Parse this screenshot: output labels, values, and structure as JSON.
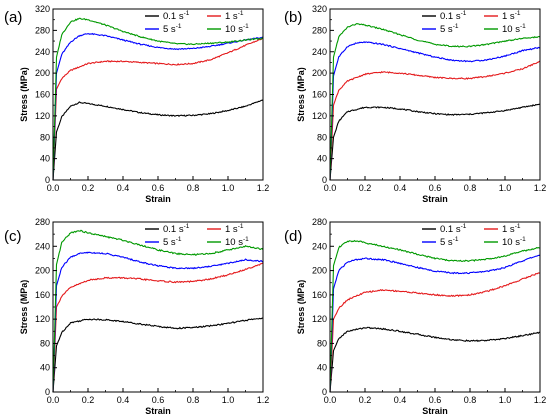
{
  "chart_data": [
    {
      "type": "line",
      "panel_label": "(a)",
      "xlabel": "Strain",
      "ylabel": "Stress (MPa)",
      "xlim": [
        0,
        1.2
      ],
      "ylim": [
        0,
        320
      ],
      "xticks": [
        "0.0",
        "0.2",
        "0.4",
        "0.6",
        "0.8",
        "1.0",
        "1.2"
      ],
      "yticks": [
        "0",
        "40",
        "80",
        "120",
        "160",
        "200",
        "240",
        "280",
        "320"
      ],
      "legend_position": "top-right",
      "series": [
        {
          "name": "0.1 s",
          "unit_exp": "-1",
          "color": "#000000",
          "x": [
            0,
            0.02,
            0.05,
            0.1,
            0.15,
            0.2,
            0.3,
            0.4,
            0.5,
            0.6,
            0.7,
            0.8,
            0.9,
            1.0,
            1.1,
            1.2
          ],
          "y": [
            0,
            90,
            118,
            138,
            145,
            143,
            138,
            132,
            126,
            122,
            120,
            121,
            124,
            130,
            138,
            150
          ]
        },
        {
          "name": "1 s",
          "unit_exp": "-1",
          "color": "#e41a1c",
          "x": [
            0,
            0.02,
            0.05,
            0.1,
            0.2,
            0.3,
            0.4,
            0.5,
            0.6,
            0.7,
            0.8,
            0.9,
            1.0,
            1.1,
            1.2
          ],
          "y": [
            0,
            170,
            190,
            205,
            218,
            222,
            222,
            220,
            218,
            216,
            218,
            225,
            238,
            252,
            265
          ]
        },
        {
          "name": "5 s",
          "unit_exp": "-1",
          "color": "#0000ff",
          "x": [
            0,
            0.02,
            0.05,
            0.1,
            0.15,
            0.2,
            0.3,
            0.4,
            0.5,
            0.6,
            0.7,
            0.8,
            0.9,
            1.0,
            1.1,
            1.2
          ],
          "y": [
            0,
            200,
            235,
            258,
            270,
            274,
            270,
            262,
            254,
            248,
            245,
            246,
            250,
            256,
            262,
            267
          ]
        },
        {
          "name": "10 s",
          "unit_exp": "-1",
          "color": "#009900",
          "x": [
            0,
            0.02,
            0.05,
            0.1,
            0.15,
            0.2,
            0.3,
            0.4,
            0.5,
            0.6,
            0.7,
            0.8,
            0.9,
            1.0,
            1.1,
            1.2
          ],
          "y": [
            0,
            230,
            272,
            296,
            302,
            300,
            290,
            278,
            268,
            260,
            255,
            254,
            256,
            258,
            262,
            265
          ]
        }
      ]
    },
    {
      "type": "line",
      "panel_label": "(b)",
      "xlabel": "Strain",
      "ylabel": "Stress (MPa)",
      "xlim": [
        0,
        1.2
      ],
      "ylim": [
        0,
        320
      ],
      "xticks": [
        "0.0",
        "0.2",
        "0.4",
        "0.6",
        "0.8",
        "1.0",
        "1.2"
      ],
      "yticks": [
        "0",
        "40",
        "80",
        "120",
        "160",
        "200",
        "240",
        "280",
        "320"
      ],
      "legend_position": "top-right",
      "series": [
        {
          "name": "0.1 s",
          "unit_exp": "-1",
          "color": "#000000",
          "x": [
            0,
            0.02,
            0.05,
            0.1,
            0.2,
            0.3,
            0.4,
            0.5,
            0.6,
            0.7,
            0.8,
            0.9,
            1.0,
            1.1,
            1.2
          ],
          "y": [
            0,
            80,
            110,
            128,
            136,
            136,
            133,
            128,
            124,
            122,
            123,
            126,
            130,
            136,
            142
          ]
        },
        {
          "name": "1 s",
          "unit_exp": "-1",
          "color": "#e41a1c",
          "x": [
            0,
            0.02,
            0.05,
            0.1,
            0.2,
            0.3,
            0.4,
            0.5,
            0.6,
            0.7,
            0.8,
            0.9,
            1.0,
            1.1,
            1.2
          ],
          "y": [
            0,
            140,
            168,
            185,
            198,
            202,
            200,
            196,
            192,
            190,
            190,
            194,
            200,
            208,
            222
          ]
        },
        {
          "name": "5 s",
          "unit_exp": "-1",
          "color": "#0000ff",
          "x": [
            0,
            0.02,
            0.05,
            0.1,
            0.15,
            0.2,
            0.3,
            0.4,
            0.5,
            0.6,
            0.7,
            0.8,
            0.9,
            1.0,
            1.1,
            1.2
          ],
          "y": [
            0,
            195,
            230,
            250,
            256,
            258,
            254,
            246,
            238,
            230,
            224,
            222,
            225,
            232,
            242,
            248
          ]
        },
        {
          "name": "10 s",
          "unit_exp": "-1",
          "color": "#009900",
          "x": [
            0,
            0.02,
            0.05,
            0.1,
            0.15,
            0.2,
            0.3,
            0.4,
            0.5,
            0.6,
            0.7,
            0.8,
            0.9,
            1.0,
            1.1,
            1.2
          ],
          "y": [
            0,
            230,
            268,
            286,
            292,
            290,
            282,
            272,
            262,
            254,
            250,
            250,
            254,
            260,
            265,
            268
          ]
        }
      ]
    },
    {
      "type": "line",
      "panel_label": "(c)",
      "xlabel": "Strain",
      "ylabel": "Stress (MPa)",
      "xlim": [
        0,
        1.2
      ],
      "ylim": [
        0,
        280
      ],
      "xticks": [
        "0.0",
        "0.2",
        "0.4",
        "0.6",
        "0.8",
        "1.0",
        "1.2"
      ],
      "yticks": [
        "0",
        "40",
        "80",
        "120",
        "160",
        "200",
        "240",
        "280"
      ],
      "legend_position": "top-right",
      "series": [
        {
          "name": "0.1 s",
          "unit_exp": "-1",
          "color": "#000000",
          "x": [
            0,
            0.02,
            0.05,
            0.1,
            0.2,
            0.3,
            0.4,
            0.5,
            0.6,
            0.7,
            0.8,
            0.9,
            1.0,
            1.1,
            1.2
          ],
          "y": [
            0,
            76,
            98,
            114,
            120,
            119,
            116,
            112,
            108,
            105,
            106,
            109,
            113,
            118,
            122
          ]
        },
        {
          "name": "1 s",
          "unit_exp": "-1",
          "color": "#e41a1c",
          "x": [
            0,
            0.02,
            0.05,
            0.1,
            0.2,
            0.3,
            0.4,
            0.5,
            0.6,
            0.7,
            0.8,
            0.9,
            1.0,
            1.1,
            1.2
          ],
          "y": [
            0,
            140,
            158,
            172,
            184,
            188,
            188,
            186,
            183,
            181,
            182,
            186,
            193,
            202,
            212
          ]
        },
        {
          "name": "5 s",
          "unit_exp": "-1",
          "color": "#0000ff",
          "x": [
            0,
            0.02,
            0.05,
            0.1,
            0.15,
            0.2,
            0.3,
            0.4,
            0.5,
            0.6,
            0.7,
            0.8,
            0.9,
            1.0,
            1.1,
            1.2
          ],
          "y": [
            0,
            175,
            205,
            222,
            228,
            230,
            228,
            222,
            214,
            208,
            204,
            204,
            207,
            212,
            218,
            215
          ]
        },
        {
          "name": "10 s",
          "unit_exp": "-1",
          "color": "#009900",
          "x": [
            0,
            0.02,
            0.05,
            0.1,
            0.15,
            0.2,
            0.3,
            0.4,
            0.5,
            0.6,
            0.7,
            0.8,
            0.9,
            1.0,
            1.1,
            1.2
          ],
          "y": [
            0,
            210,
            246,
            262,
            266,
            262,
            256,
            250,
            242,
            234,
            228,
            226,
            228,
            234,
            240,
            235
          ]
        }
      ]
    },
    {
      "type": "line",
      "panel_label": "(d)",
      "xlabel": "Strain",
      "ylabel": "Stress (MPa)",
      "xlim": [
        0,
        1.2
      ],
      "ylim": [
        0,
        280
      ],
      "xticks": [
        "0.0",
        "0.2",
        "0.4",
        "0.6",
        "0.8",
        "1.0",
        "1.2"
      ],
      "yticks": [
        "0",
        "40",
        "80",
        "120",
        "160",
        "200",
        "240",
        "280"
      ],
      "legend_position": "top-right",
      "series": [
        {
          "name": "0.1 s",
          "unit_exp": "-1",
          "color": "#000000",
          "x": [
            0,
            0.02,
            0.05,
            0.1,
            0.2,
            0.3,
            0.4,
            0.5,
            0.6,
            0.7,
            0.8,
            0.9,
            1.0,
            1.1,
            1.2
          ],
          "y": [
            0,
            68,
            88,
            100,
            106,
            104,
            100,
            95,
            90,
            86,
            84,
            85,
            88,
            93,
            98
          ]
        },
        {
          "name": "1 s",
          "unit_exp": "-1",
          "color": "#e41a1c",
          "x": [
            0,
            0.02,
            0.05,
            0.1,
            0.2,
            0.3,
            0.4,
            0.5,
            0.6,
            0.7,
            0.8,
            0.9,
            1.0,
            1.1,
            1.2
          ],
          "y": [
            0,
            120,
            138,
            152,
            164,
            168,
            166,
            163,
            160,
            158,
            160,
            166,
            175,
            186,
            197
          ]
        },
        {
          "name": "5 s",
          "unit_exp": "-1",
          "color": "#0000ff",
          "x": [
            0,
            0.02,
            0.05,
            0.1,
            0.15,
            0.2,
            0.3,
            0.4,
            0.5,
            0.6,
            0.7,
            0.8,
            0.9,
            1.0,
            1.1,
            1.2
          ],
          "y": [
            0,
            170,
            200,
            214,
            218,
            220,
            218,
            212,
            205,
            199,
            196,
            196,
            199,
            205,
            216,
            226
          ]
        },
        {
          "name": "10 s",
          "unit_exp": "-1",
          "color": "#009900",
          "x": [
            0,
            0.02,
            0.05,
            0.1,
            0.15,
            0.2,
            0.3,
            0.4,
            0.5,
            0.6,
            0.7,
            0.8,
            0.9,
            1.0,
            1.1,
            1.2
          ],
          "y": [
            0,
            208,
            238,
            248,
            249,
            246,
            240,
            234,
            227,
            220,
            216,
            216,
            219,
            224,
            232,
            238
          ]
        }
      ]
    }
  ]
}
